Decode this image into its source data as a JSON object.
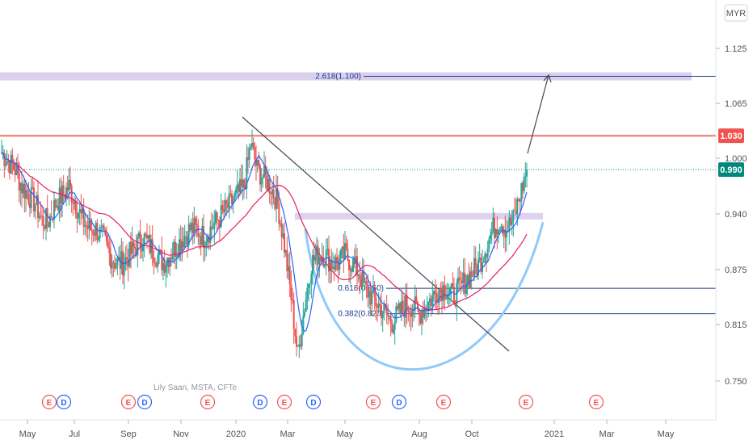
{
  "currency_label": "MYR",
  "watermark": "Lily Saari, MSTA, CFTe",
  "colors": {
    "up": "#26a69a",
    "down": "#ef5350",
    "ma_fast": "#2962ff",
    "ma_slow": "#e91e63",
    "resistance": "#f28b82",
    "zone": "#d1c4e9",
    "fib_line": "#1e3a8a",
    "cup": "#90caf9",
    "trend": "#434651",
    "last_price_bg": "#00897b",
    "resistance_badge_bg": "#ef5350"
  },
  "chart_data": {
    "type": "candlestick",
    "ylim": [
      0.695,
      1.19
    ],
    "y_ticks": [
      "1.125",
      "1.065",
      "1.000",
      "0.940",
      "0.875",
      "0.815",
      "0.750"
    ],
    "x_ticks": [
      "May",
      "Jul",
      "Sep",
      "Nov",
      "2020",
      "Mar",
      "May",
      "Aug",
      "Oct",
      "2021",
      "Mar",
      "May"
    ],
    "resistance": {
      "value": 1.03,
      "label": "1.030"
    },
    "last_price": {
      "value": 0.99,
      "label": "0.990"
    },
    "fib_levels": [
      {
        "label": "2.618(1.100)",
        "value": 1.1
      },
      {
        "label": "0.618(0.850)",
        "value": 0.85
      },
      {
        "label": "0.382(0.820)",
        "value": 0.82
      }
    ],
    "events": [
      {
        "type": "E",
        "color": "#ef5350"
      },
      {
        "type": "D",
        "color": "#2962ff"
      },
      {
        "type": "E",
        "color": "#ef5350"
      },
      {
        "type": "D",
        "color": "#2962ff"
      },
      {
        "type": "E",
        "color": "#ef5350"
      },
      {
        "type": "D",
        "color": "#2962ff"
      },
      {
        "type": "E",
        "color": "#ef5350"
      },
      {
        "type": "D",
        "color": "#2962ff"
      },
      {
        "type": "E",
        "color": "#ef5350"
      },
      {
        "type": "D",
        "color": "#2962ff"
      },
      {
        "type": "E",
        "color": "#ef5350"
      },
      {
        "type": "E",
        "color": "#ef5350"
      },
      {
        "type": "E",
        "color": "#ef5350"
      }
    ],
    "price_series": [
      1.01,
      1.0,
      0.99,
      0.97,
      0.96,
      0.95,
      0.93,
      0.93,
      0.95,
      0.96,
      0.97,
      0.95,
      0.93,
      0.92,
      0.92,
      0.91,
      0.89,
      0.88,
      0.88,
      0.89,
      0.9,
      0.91,
      0.9,
      0.89,
      0.88,
      0.89,
      0.9,
      0.91,
      0.92,
      0.92,
      0.91,
      0.92,
      0.93,
      0.94,
      0.95,
      0.96,
      0.97,
      1.02,
      0.99,
      0.98,
      0.97,
      0.95,
      0.9,
      0.84,
      0.77,
      0.83,
      0.88,
      0.89,
      0.89,
      0.88,
      0.88,
      0.89,
      0.88,
      0.87,
      0.85,
      0.84,
      0.83,
      0.82,
      0.81,
      0.82,
      0.83,
      0.83,
      0.82,
      0.83,
      0.84,
      0.85,
      0.85,
      0.84,
      0.85,
      0.86,
      0.87,
      0.88,
      0.9,
      0.92,
      0.93,
      0.92,
      0.93,
      0.96,
      0.99
    ]
  }
}
